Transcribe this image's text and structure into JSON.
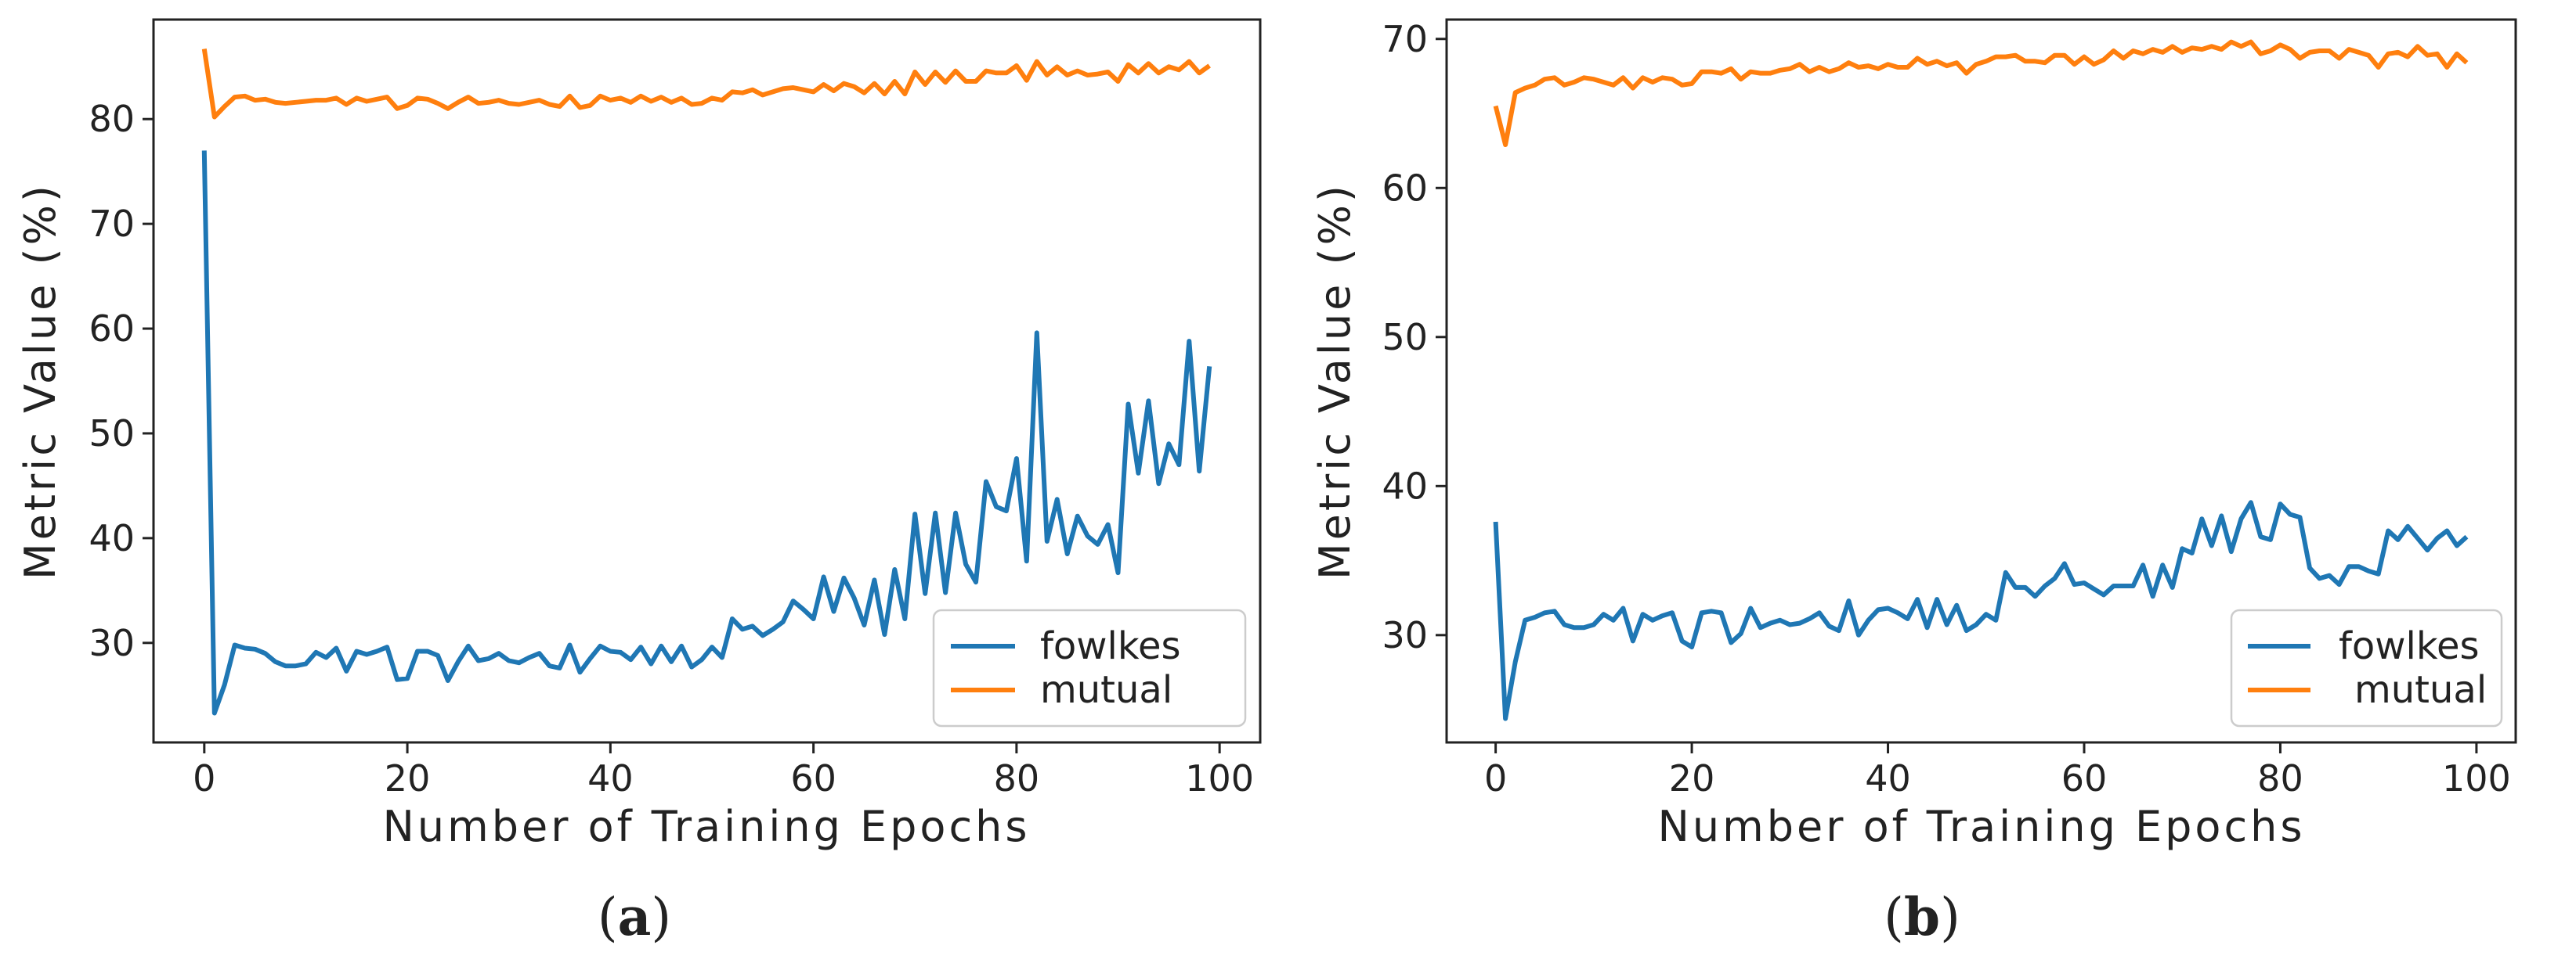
{
  "colors": {
    "fowlkes": "#1f77b4",
    "mutual": "#ff7f0e",
    "axis": "#222222",
    "legend_border": "#cccccc"
  },
  "chart_data": [
    {
      "type": "line",
      "panel_label": "a",
      "xlabel": "Number of Training Epochs",
      "ylabel": "Metric Value (%)",
      "xlim": [
        -5,
        104
      ],
      "ylim": [
        20.5,
        89.5
      ],
      "xticks": [
        0,
        20,
        40,
        60,
        80,
        100
      ],
      "yticks": [
        30,
        40,
        50,
        60,
        70,
        80
      ],
      "legend_position": "lower-right",
      "series": [
        {
          "name": "fowlkes",
          "color": "#1f77b4",
          "values": [
            77,
            23.3,
            26,
            29.8,
            29.5,
            29.4,
            29,
            28.2,
            27.8,
            27.8,
            28,
            29.1,
            28.6,
            29.5,
            27.3,
            29.2,
            28.9,
            29.2,
            29.6,
            26.5,
            26.6,
            29.2,
            29.2,
            28.8,
            26.4,
            28.2,
            29.7,
            28.3,
            28.5,
            29,
            28.3,
            28.1,
            28.6,
            29,
            27.8,
            27.6,
            29.8,
            27.2,
            28.5,
            29.7,
            29.2,
            29.1,
            28.4,
            29.6,
            28,
            29.7,
            28.2,
            29.7,
            27.7,
            28.4,
            29.6,
            28.6,
            32.3,
            31.3,
            31.6,
            30.7,
            31.3,
            32,
            34,
            33.2,
            32.3,
            36.3,
            33,
            36.2,
            34.3,
            31.7,
            36,
            30.8,
            37,
            32.3,
            42.3,
            34.7,
            42.4,
            34.8,
            42.4,
            37.5,
            35.8,
            45.4,
            43,
            42.6,
            47.6,
            37.8,
            59.6,
            39.7,
            43.7,
            38.5,
            42.1,
            40.2,
            39.4,
            41.3,
            36.7,
            52.8,
            46.2,
            53.1,
            45.2,
            49,
            47,
            58.8,
            46.4,
            56.4
          ]
        },
        {
          "name": "mutual",
          "color": "#ff7f0e",
          "values": [
            86.7,
            80.2,
            81.2,
            82.1,
            82.2,
            81.8,
            81.9,
            81.6,
            81.5,
            81.6,
            81.7,
            81.8,
            81.8,
            82,
            81.4,
            82,
            81.7,
            81.9,
            82.1,
            81,
            81.3,
            82,
            81.9,
            81.5,
            81,
            81.6,
            82.1,
            81.5,
            81.6,
            81.8,
            81.5,
            81.4,
            81.6,
            81.8,
            81.4,
            81.2,
            82.2,
            81.1,
            81.3,
            82.2,
            81.8,
            82,
            81.6,
            82.2,
            81.7,
            82.1,
            81.6,
            82,
            81.4,
            81.5,
            82,
            81.8,
            82.6,
            82.5,
            82.8,
            82.3,
            82.6,
            82.9,
            83,
            82.8,
            82.6,
            83.3,
            82.7,
            83.4,
            83.1,
            82.5,
            83.4,
            82.4,
            83.6,
            82.4,
            84.5,
            83.3,
            84.5,
            83.5,
            84.6,
            83.6,
            83.6,
            84.6,
            84.4,
            84.4,
            85.1,
            83.7,
            85.5,
            84.2,
            85,
            84.2,
            84.6,
            84.2,
            84.3,
            84.5,
            83.6,
            85.2,
            84.4,
            85.3,
            84.4,
            85,
            84.7,
            85.5,
            84.4,
            85.1
          ]
        }
      ]
    },
    {
      "type": "line",
      "panel_label": "b",
      "xlabel": "Number of Training Epochs",
      "ylabel": "Metric Value (%)",
      "xlim": [
        -5,
        104
      ],
      "ylim": [
        22.8,
        71.3
      ],
      "xticks": [
        0,
        20,
        40,
        60,
        80,
        100
      ],
      "yticks": [
        30,
        40,
        50,
        60,
        70
      ],
      "legend_position": "lower-right",
      "series": [
        {
          "name": "fowlkes",
          "color": "#1f77b4",
          "values": [
            37.6,
            24.4,
            28.2,
            31,
            31.2,
            31.5,
            31.6,
            30.7,
            30.5,
            30.5,
            30.7,
            31.4,
            31,
            31.8,
            29.6,
            31.4,
            31,
            31.3,
            31.5,
            29.6,
            29.2,
            31.5,
            31.6,
            31.5,
            29.5,
            30.1,
            31.8,
            30.5,
            30.8,
            31,
            30.7,
            30.8,
            31.1,
            31.5,
            30.6,
            30.3,
            32.3,
            30,
            31,
            31.7,
            31.8,
            31.5,
            31.1,
            32.4,
            30.5,
            32.4,
            30.7,
            32,
            30.3,
            30.7,
            31.4,
            31,
            34.2,
            33.2,
            33.2,
            32.6,
            33.3,
            33.8,
            34.8,
            33.4,
            33.5,
            33.1,
            32.7,
            33.3,
            33.3,
            33.3,
            34.7,
            32.6,
            34.7,
            33.2,
            35.8,
            35.5,
            37.8,
            36,
            38,
            35.6,
            37.8,
            38.9,
            36.6,
            36.4,
            38.8,
            38.1,
            37.9,
            34.5,
            33.8,
            34,
            33.4,
            34.6,
            34.6,
            34.3,
            34.1,
            37,
            36.4,
            37.3,
            36.5,
            35.7,
            36.5,
            37,
            36,
            36.6
          ]
        },
        {
          "name": "mutual",
          "color": "#ff7f0e",
          "values": [
            65.5,
            62.9,
            66.4,
            66.7,
            66.9,
            67.3,
            67.4,
            66.9,
            67.1,
            67.4,
            67.3,
            67.1,
            66.9,
            67.4,
            66.7,
            67.4,
            67.1,
            67.4,
            67.3,
            66.9,
            67,
            67.8,
            67.8,
            67.7,
            68,
            67.3,
            67.8,
            67.7,
            67.7,
            67.9,
            68,
            68.3,
            67.8,
            68.1,
            67.8,
            68,
            68.4,
            68.1,
            68.2,
            68,
            68.3,
            68.1,
            68.1,
            68.7,
            68.3,
            68.5,
            68.2,
            68.4,
            67.7,
            68.3,
            68.5,
            68.8,
            68.8,
            68.9,
            68.5,
            68.5,
            68.4,
            68.9,
            68.9,
            68.3,
            68.8,
            68.3,
            68.6,
            69.2,
            68.7,
            69.2,
            69,
            69.3,
            69.1,
            69.5,
            69.1,
            69.4,
            69.3,
            69.5,
            69.3,
            69.8,
            69.5,
            69.8,
            69,
            69.2,
            69.6,
            69.3,
            68.7,
            69.1,
            69.2,
            69.2,
            68.7,
            69.3,
            69.1,
            68.9,
            68.1,
            69,
            69.1,
            68.8,
            69.5,
            68.9,
            69,
            68.1,
            69,
            68.4
          ]
        }
      ]
    }
  ]
}
